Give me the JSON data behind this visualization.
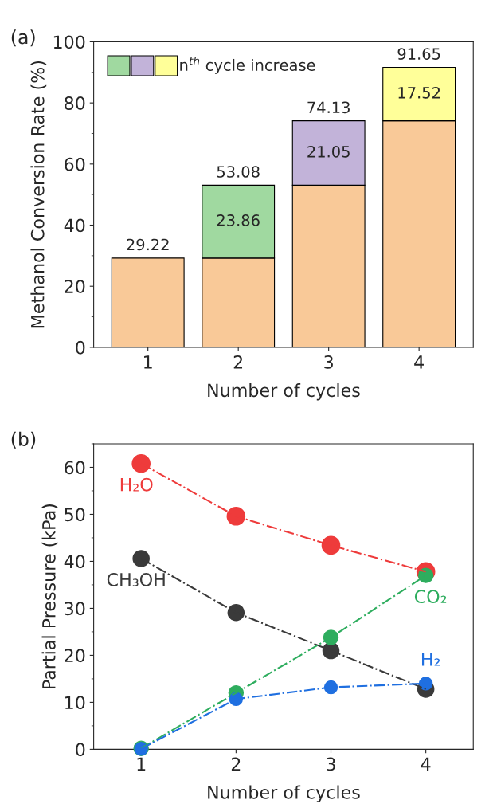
{
  "chart_data": [
    {
      "type": "bar",
      "stacked": true,
      "xlabel": "Number of cycles",
      "ylabel": "Methanol Conversion Rate (%)",
      "categories": [
        "1",
        "2",
        "3",
        "4"
      ],
      "ylim": [
        0,
        100
      ],
      "yticks": [
        0,
        20,
        40,
        60,
        80,
        100
      ],
      "legend": "top left",
      "grid": false,
      "series": [
        {
          "color": "#f9c998",
          "values": [
            29.22,
            29.22,
            53.08,
            74.13
          ]
        },
        {
          "color": "#a0d9a0",
          "values": [
            null,
            23.86,
            null,
            null
          ],
          "value_labels": [
            null,
            "23.86",
            null,
            null
          ]
        },
        {
          "color": "#c2b3d9",
          "values": [
            null,
            null,
            21.05,
            null
          ],
          "value_labels": [
            null,
            null,
            "21.05",
            null
          ]
        },
        {
          "name": "n$^{th}$ cycle increase",
          "color": "#ffff99",
          "values": [
            null,
            null,
            null,
            17.52
          ],
          "value_labels": [
            null,
            null,
            null,
            "17.52"
          ]
        }
      ],
      "totals": [
        "29.22",
        "53.08",
        "74.13",
        "91.65"
      ],
      "annotations": [
        "(a)"
      ]
    },
    {
      "type": "line",
      "xlabel": "Number of cycles",
      "ylabel": "Partial Pressure (kPa)",
      "x": [
        1,
        2,
        3,
        4
      ],
      "xlim": [
        0.5,
        4.5
      ],
      "xticks": [
        1,
        2,
        3,
        4
      ],
      "ylim": [
        0,
        65
      ],
      "yticks": [
        0,
        10,
        20,
        30,
        40,
        50,
        60
      ],
      "marker": "circle",
      "line_style": "dashdot",
      "grid": false,
      "legend": false,
      "series": [
        {
          "name": "H₂O",
          "color": "#ee3b3b",
          "values": [
            60.8,
            49.6,
            43.4,
            37.8
          ]
        },
        {
          "name": "CH₃OH",
          "color": "#3a3a3a",
          "values": [
            40.6,
            29.1,
            21.0,
            12.8
          ]
        },
        {
          "name": "CO₂",
          "color": "#2ead5e",
          "values": [
            0.2,
            12.0,
            23.8,
            37.0
          ]
        },
        {
          "name": "H₂",
          "color": "#1f6fe0",
          "values": [
            0.1,
            10.7,
            13.2,
            14.0
          ]
        }
      ],
      "annotations": [
        "(b)"
      ]
    }
  ]
}
